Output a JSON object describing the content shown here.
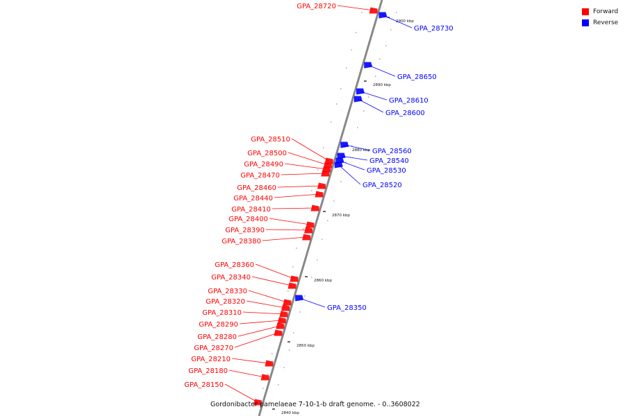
{
  "caption": "Gordonibacter pamelaeae 7-10-1-b draft genome. - 0..3608022",
  "legend": [
    {
      "label": "Forward",
      "color": "#ff0000"
    },
    {
      "label": "Reverse",
      "color": "#0000ff"
    }
  ],
  "colors": {
    "forward": "#ff0000",
    "reverse": "#0000ff",
    "backbone": "#888888",
    "tick": "#000000"
  },
  "scale_marks": [
    "2900 kbp",
    "2890 kbp",
    "2880 kbp",
    "2870 kbp",
    "2860 kbp",
    "2850 kbp",
    "2840 kbp"
  ],
  "forward_genes": [
    "GPA_28720",
    "GPA_28510",
    "GPA_28500",
    "GPA_28490",
    "GPA_28470",
    "GPA_28460",
    "GPA_28440",
    "GPA_28410",
    "GPA_28400",
    "GPA_28390",
    "GPA_28380",
    "GPA_28360",
    "GPA_28340",
    "GPA_28330",
    "GPA_28320",
    "GPA_28310",
    "GPA_28290",
    "GPA_28280",
    "GPA_28270",
    "GPA_28210",
    "GPA_28180",
    "GPA_28150"
  ],
  "reverse_genes": [
    "GPA_28730",
    "GPA_28650",
    "GPA_28610",
    "GPA_28600",
    "GPA_28560",
    "GPA_28540",
    "GPA_28530",
    "GPA_28520",
    "GPA_28350"
  ]
}
